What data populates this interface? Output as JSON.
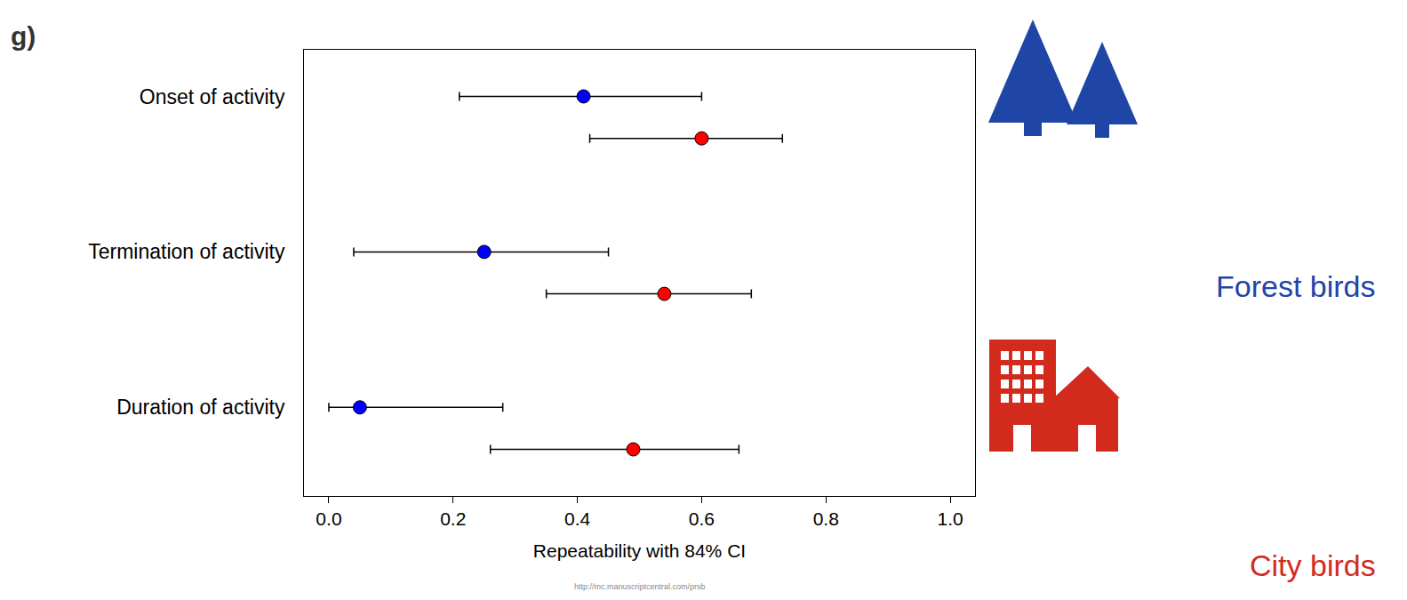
{
  "chart_data": {
    "type": "dot",
    "panel_label": "g)",
    "categories": [
      "Onset of activity",
      "Termination of activity",
      "Duration of activity"
    ],
    "x_label": "Repeatability with 84% CI",
    "xlim": [
      -0.04,
      1.04
    ],
    "xticks": [
      {
        "value": 0,
        "label": "0.0"
      },
      0.2,
      0.4,
      0.6,
      0.8,
      {
        "value": 1,
        "label": "1.0"
      }
    ],
    "grid": false,
    "series": [
      {
        "name": "Forest birds",
        "color": "#0000ff",
        "marker": "circle",
        "values": [
          0.41,
          0.25,
          0.05
        ],
        "ci_low": [
          0.21,
          0.04,
          0.0
        ],
        "ci_high": [
          0.6,
          0.45,
          0.28
        ]
      },
      {
        "name": "City birds",
        "color": "#ff0000",
        "marker": "circle",
        "values": [
          0.6,
          0.54,
          0.49
        ],
        "ci_low": [
          0.42,
          0.35,
          0.26
        ],
        "ci_high": [
          0.73,
          0.68,
          0.66
        ]
      }
    ],
    "watermark": "http://mc.manuscriptcentral.com/prsb"
  }
}
